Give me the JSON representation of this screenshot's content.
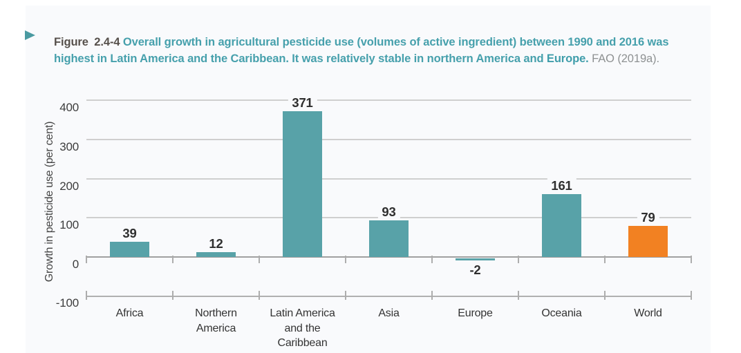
{
  "figure": {
    "marker_icon": "right-arrow-icon",
    "label": "Figure 2.4-4",
    "caption": "Overall growth in agricultural pesticide use (volumes of active ingredient) between 1990 and 2016 was highest in Latin America and the Caribbean. It was relatively stable in northern America and ",
    "caption_bold": "Europe. ",
    "source": "FAO (2019a).",
    "colors": {
      "caption_teal": "#46a0ac",
      "figure_label": "#56504b",
      "source_gray": "#8e9192",
      "marker_arrow": "#4a9aa1",
      "figure_background": "#f9fafc"
    }
  },
  "chart_data": {
    "type": "bar",
    "title": "",
    "xlabel": "",
    "ylabel": "Growth in pesticide use (per cent)",
    "ylim": [
      -100,
      400
    ],
    "yticks": [
      400,
      300,
      200,
      100,
      0,
      -100
    ],
    "grid": "horizontal",
    "legend": "none",
    "categories": [
      "Africa",
      "Northern\nAmerica",
      "Latin America\nand the\nCaribbean",
      "Asia",
      "Europe",
      "Oceania",
      "World"
    ],
    "values": [
      39,
      12,
      371,
      93,
      -2,
      161,
      79
    ],
    "bar_colors": [
      "#58a2a8",
      "#58a2a8",
      "#58a2a8",
      "#58a2a8",
      "#58a2a8",
      "#58a2a8",
      "#f28122"
    ],
    "value_labels_shown": true
  }
}
